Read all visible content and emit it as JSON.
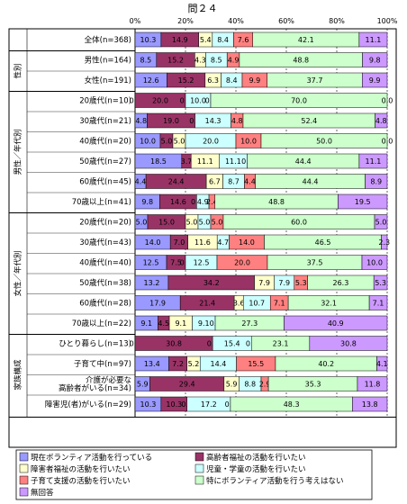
{
  "chart_data": {
    "type": "bar",
    "stacked": "percent",
    "orientation": "horizontal",
    "title": "問２４",
    "xlim": [
      0,
      100
    ],
    "x_ticks": [
      "0%",
      "20%",
      "40%",
      "60%",
      "80%",
      "100%"
    ],
    "series": [
      {
        "name": "現在ボランティア活動を行っている",
        "color": "#9999ff"
      },
      {
        "name": "高齢者福祉の活動を行いたい",
        "color": "#993366"
      },
      {
        "name": "障害者福祉の活動を行いたい",
        "color": "#ffffcc"
      },
      {
        "name": "児童・学童の活動を行いたい",
        "color": "#ccffff"
      },
      {
        "name": "子育て支援の活動を行いたい",
        "color": "#ff8080"
      },
      {
        "name": "特にボランティア活動を行う考えはない",
        "color": "#ccffcc"
      },
      {
        "name": "無回答",
        "color": "#cc99ff"
      }
    ],
    "groups": [
      {
        "label": "",
        "rows": [
          0
        ]
      },
      {
        "label": "性別",
        "rows": [
          1,
          2
        ]
      },
      {
        "label": "男性／年代別",
        "rows": [
          3,
          4,
          5,
          6,
          7,
          8
        ]
      },
      {
        "label": "女性／年代別",
        "rows": [
          9,
          10,
          11,
          12,
          13,
          14
        ]
      },
      {
        "label": "家族構成",
        "rows": [
          15,
          16,
          17,
          18
        ]
      }
    ],
    "rows": [
      {
        "label": "全体(n=368)",
        "values": [
          10.3,
          14.9,
          5.4,
          8.4,
          7.6,
          42.1,
          11.1
        ]
      },
      {
        "label": "男性(n=164)",
        "values": [
          8.5,
          15.2,
          4.3,
          8.5,
          4.9,
          48.8,
          9.8
        ]
      },
      {
        "label": "女性(n=191)",
        "values": [
          12.6,
          15.2,
          6.3,
          8.4,
          9.9,
          37.7,
          9.9
        ]
      },
      {
        "label": "20歳代(n=10)",
        "values": [
          0.0,
          20.0,
          0.0,
          10.0,
          0.0,
          70.0,
          0.0
        ]
      },
      {
        "label": "30歳代(n=21)",
        "values": [
          4.8,
          19.0,
          0.0,
          14.3,
          4.8,
          52.4,
          4.8
        ]
      },
      {
        "label": "40歳代(n=20)",
        "values": [
          10.0,
          5.0,
          5.0,
          20.0,
          10.0,
          50.0,
          0.0
        ]
      },
      {
        "label": "50歳代(n=27)",
        "values": [
          18.5,
          3.7,
          11.1,
          11.1,
          0.0,
          44.4,
          11.1
        ]
      },
      {
        "label": "60歳代(n=45)",
        "values": [
          4.4,
          24.4,
          6.7,
          8.7,
          4.4,
          44.4,
          8.9
        ]
      },
      {
        "label": "70歳以上(n=41)",
        "values": [
          9.8,
          14.6,
          0.0,
          4.9,
          2.4,
          48.8,
          19.5
        ]
      },
      {
        "label": "20歳代(n=20)",
        "values": [
          5.0,
          15.0,
          5.0,
          5.0,
          5.0,
          60.0,
          5.0
        ]
      },
      {
        "label": "30歳代(n=43)",
        "values": [
          14.0,
          7.0,
          11.6,
          4.7,
          14.0,
          46.5,
          2.3
        ]
      },
      {
        "label": "40歳代(n=40)",
        "values": [
          12.5,
          7.5,
          0.0,
          12.5,
          20.0,
          37.5,
          10.0
        ]
      },
      {
        "label": "50歳代(n=38)",
        "values": [
          13.2,
          34.2,
          7.9,
          7.9,
          5.3,
          26.3,
          5.3
        ]
      },
      {
        "label": "60歳代(n=28)",
        "values": [
          17.9,
          21.4,
          3.6,
          10.7,
          7.1,
          32.1,
          7.1
        ]
      },
      {
        "label": "70歳以上(n=22)",
        "values": [
          9.1,
          4.5,
          9.1,
          9.1,
          0.0,
          27.3,
          40.9
        ]
      },
      {
        "label": "ひとり暮らし(n=13)",
        "values": [
          0.0,
          30.8,
          0.0,
          15.4,
          0.0,
          23.1,
          30.8
        ]
      },
      {
        "label": "子育て中(n=97)",
        "values": [
          13.4,
          7.2,
          5.2,
          14.4,
          15.5,
          40.2,
          4.1
        ]
      },
      {
        "label": "介護が必要な\n高齢者がいる(n=34)",
        "values": [
          5.9,
          29.4,
          5.9,
          8.8,
          2.9,
          35.3,
          11.8
        ]
      },
      {
        "label": "障害児(者)がいる(n=29)",
        "values": [
          10.3,
          10.3,
          0.0,
          17.2,
          0.0,
          48.3,
          13.8
        ]
      }
    ],
    "legend_position": "bottom"
  }
}
